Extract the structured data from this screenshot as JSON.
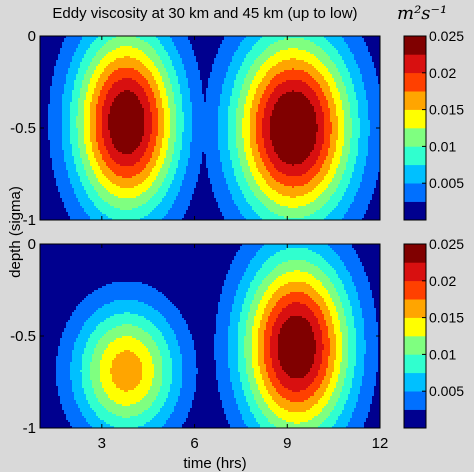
{
  "chart_data": {
    "type": "heatmap",
    "title": "Eddy viscosity at 30 km and 45 km (up to low)",
    "unit_label": "m²s⁻¹",
    "xlabel": "time (hrs)",
    "ylabel": "depth (sigma)",
    "xlim": [
      1,
      12
    ],
    "ylim": [
      -1,
      0
    ],
    "x_ticks": [
      3,
      6,
      9,
      12
    ],
    "x_tick_labels": [
      "3",
      "6",
      "9",
      "12"
    ],
    "y_ticks": [
      0,
      -0.5,
      -1
    ],
    "y_tick_labels": [
      "0",
      "-0.5",
      "-1"
    ],
    "colorbar": {
      "min": 0,
      "max": 0.025,
      "ticks": [
        0.025,
        0.02,
        0.015,
        0.01,
        0.005
      ],
      "tick_labels": [
        "0.025",
        "0.02",
        "0.015",
        "0.01",
        "0.005"
      ]
    },
    "contour_levels": [
      0.0025,
      0.005,
      0.0075,
      0.01,
      0.0125,
      0.015,
      0.0175,
      0.02,
      0.0225
    ],
    "level_colors": [
      "#00008f",
      "#0070ff",
      "#00c0ff",
      "#30ffcf",
      "#7fff80",
      "#ffff00",
      "#ffa500",
      "#ff4000",
      "#d81010",
      "#800000"
    ],
    "panels": [
      {
        "name": "30 km",
        "blobs": [
          {
            "t_center": 3.8,
            "depth_center": -0.47,
            "t_halfwidth": 2.1,
            "depth_halfwidth": 0.62,
            "peak": 0.0255
          },
          {
            "t_center": 9.2,
            "depth_center": -0.5,
            "t_halfwidth": 2.4,
            "depth_halfwidth": 0.63,
            "peak": 0.0265
          }
        ]
      },
      {
        "name": "45 km",
        "blobs": [
          {
            "t_center": 3.8,
            "depth_center": -0.69,
            "t_halfwidth": 2.1,
            "depth_halfwidth": 0.45,
            "peak": 0.0165
          },
          {
            "t_center": 9.3,
            "depth_center": -0.56,
            "t_halfwidth": 2.2,
            "depth_halfwidth": 0.62,
            "peak": 0.0255
          }
        ]
      }
    ]
  }
}
